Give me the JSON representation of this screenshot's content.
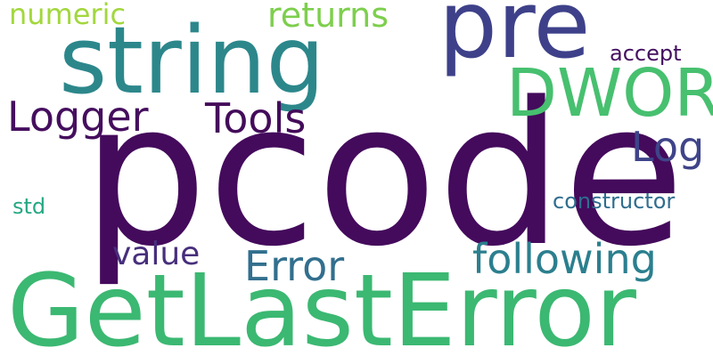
{
  "wordcloud": {
    "words": {
      "pcode": "pcode",
      "getlasterror": "GetLastError",
      "string": "string",
      "pre": "pre",
      "dword": "DWORD",
      "logger": "Logger",
      "tools": "Tools",
      "log": "Log",
      "error": "Error",
      "following": "following",
      "returns": "returns",
      "numeric": "numeric",
      "value": "value",
      "accept": "accept",
      "constructor": "constructor",
      "std": "std"
    },
    "colors": {
      "background": "#ffffff",
      "dark_purple": "#440a5c",
      "indigo": "#3e4189",
      "teal": "#2c878b",
      "green": "#3bb872",
      "light_green": "#7dcf4d",
      "lime": "#a3d73d"
    }
  }
}
